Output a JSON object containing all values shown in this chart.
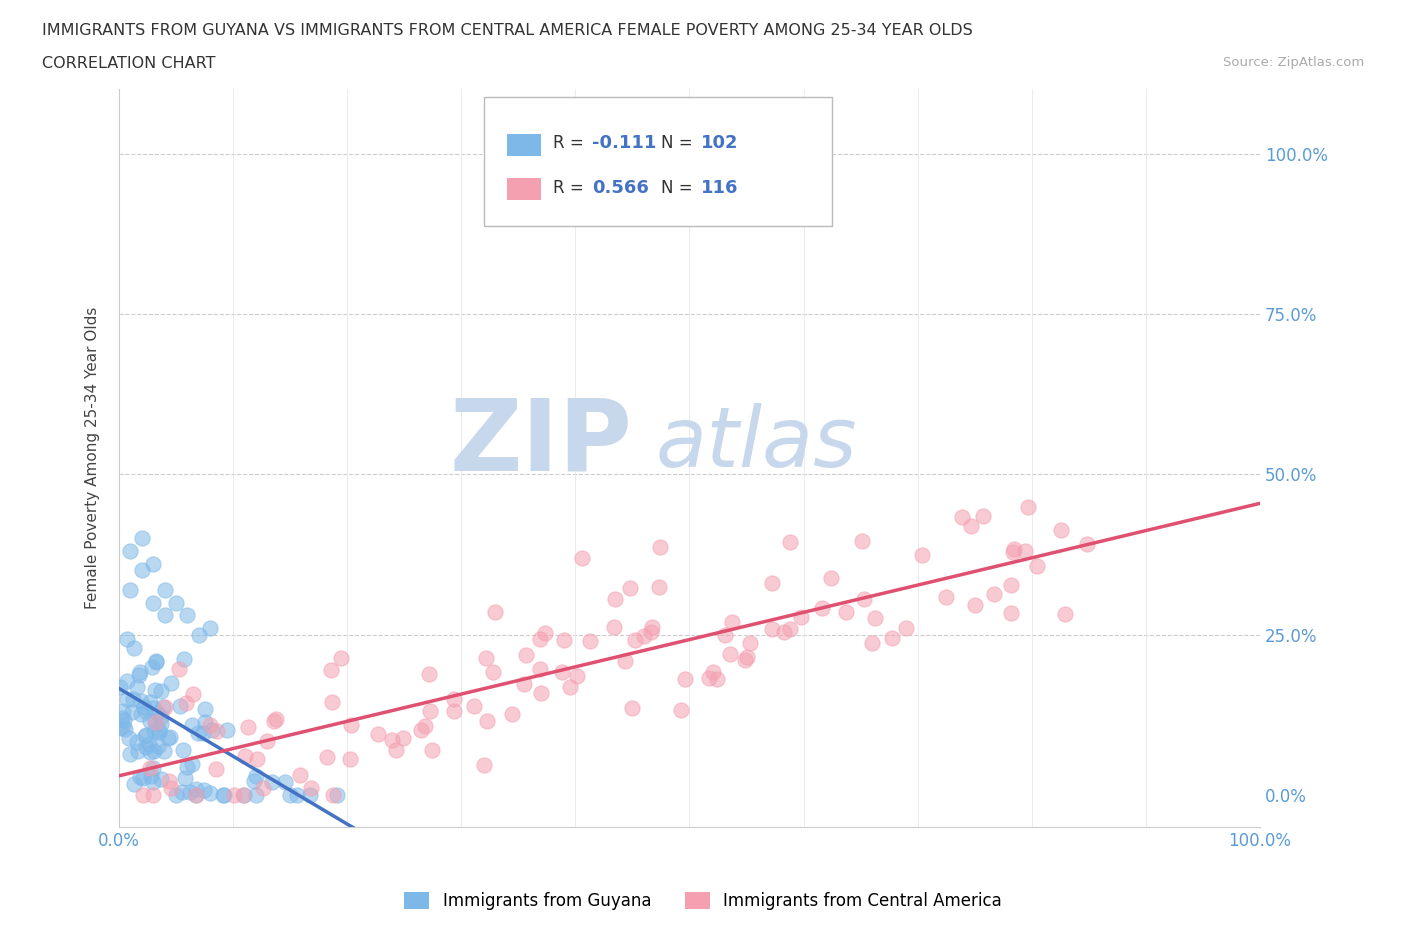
{
  "title_line1": "IMMIGRANTS FROM GUYANA VS IMMIGRANTS FROM CENTRAL AMERICA FEMALE POVERTY AMONG 25-34 YEAR OLDS",
  "title_line2": "CORRELATION CHART",
  "source_text": "Source: ZipAtlas.com",
  "ylabel": "Female Poverty Among 25-34 Year Olds",
  "xlim": [
    0.0,
    1.0
  ],
  "ylim": [
    -0.05,
    1.1
  ],
  "guyana_color": "#7EB8E8",
  "central_america_color": "#F4A0B0",
  "guyana_R": -0.111,
  "guyana_N": 102,
  "central_america_R": 0.566,
  "central_america_N": 116,
  "regression_line_guyana_color": "#4472C4",
  "regression_line_central_color": "#E05070",
  "watermark_text_zip": "ZIP",
  "watermark_text_atlas": "atlas",
  "watermark_color_zip": "#C8D8EC",
  "watermark_color_atlas": "#C8D8EC",
  "background_color": "#FFFFFF",
  "legend_label_guyana": "Immigrants from Guyana",
  "legend_label_central": "Immigrants from Central America"
}
